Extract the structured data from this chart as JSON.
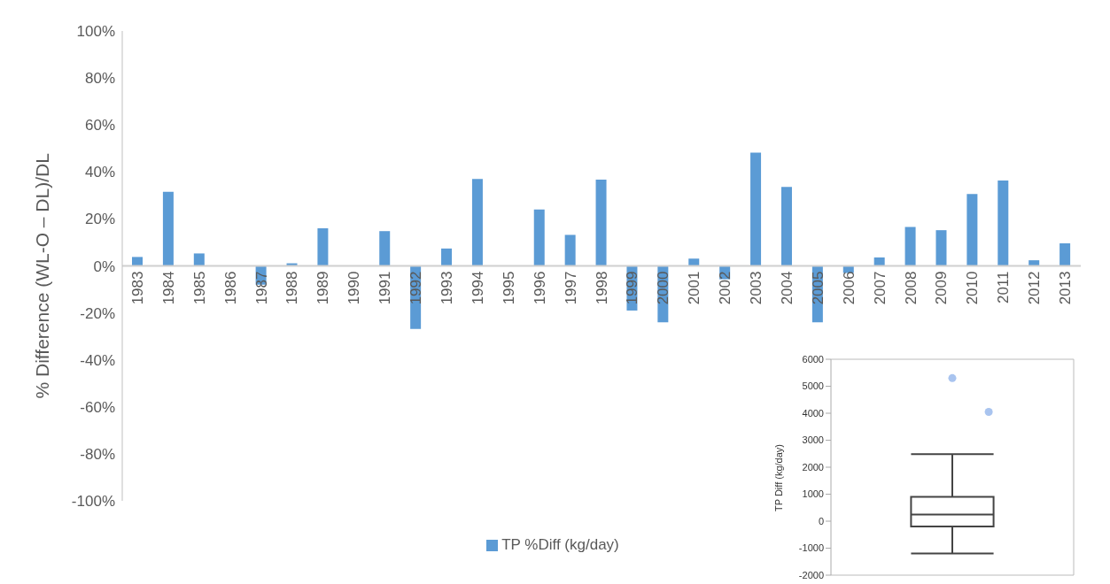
{
  "chart_data": [
    {
      "type": "bar",
      "ylabel": "% Difference (WL-O – DL)/DL",
      "categories": [
        "1983",
        "1984",
        "1985",
        "1986",
        "1987",
        "1988",
        "1989",
        "1990",
        "1991",
        "1992",
        "1993",
        "1994",
        "1995",
        "1996",
        "1997",
        "1998",
        "1999",
        "2000",
        "2001",
        "2002",
        "2003",
        "2004",
        "2005",
        "2006",
        "2007",
        "2008",
        "2009",
        "2010",
        "2011",
        "2012",
        "2013"
      ],
      "series": [
        {
          "name": "TP %Diff (kg/day)",
          "color": "#5b9bd5",
          "values": [
            3.8,
            31.5,
            5.3,
            null,
            -8,
            1.1,
            16,
            null,
            14.8,
            -26.8,
            7.4,
            37,
            null,
            24,
            13.2,
            36.7,
            -19,
            -24,
            3.1,
            -5.7,
            48.2,
            33.6,
            -24,
            -3,
            3.6,
            16.6,
            15.2,
            30.6,
            36.3,
            2.4,
            9.6
          ]
        }
      ],
      "ylim": [
        -100,
        100
      ],
      "yticks": [
        {
          "value": -100,
          "label": "-100%"
        },
        {
          "value": -80,
          "label": "-80%"
        },
        {
          "value": -60,
          "label": "-60%"
        },
        {
          "value": -40,
          "label": "-40%"
        },
        {
          "value": -20,
          "label": "-20%"
        },
        {
          "value": 0,
          "label": "0%"
        },
        {
          "value": 20,
          "label": "20%"
        },
        {
          "value": 40,
          "label": "40%"
        },
        {
          "value": 60,
          "label": "60%"
        },
        {
          "value": 80,
          "label": "80%"
        },
        {
          "value": 100,
          "label": "100%"
        }
      ],
      "legend": "bottom"
    },
    {
      "type": "box",
      "ylabel": "TP Diff (kg/day)",
      "categories": [
        null
      ],
      "boxes": [
        {
          "low": -1200,
          "q1": -200,
          "median": 250,
          "q3": 900,
          "high": 2480,
          "outliers": [
            5300,
            4050
          ]
        }
      ],
      "ylim": [
        -2000,
        6000
      ],
      "yticks": [
        -2000,
        -1000,
        0,
        1000,
        2000,
        3000,
        4000,
        5000,
        6000
      ]
    }
  ]
}
